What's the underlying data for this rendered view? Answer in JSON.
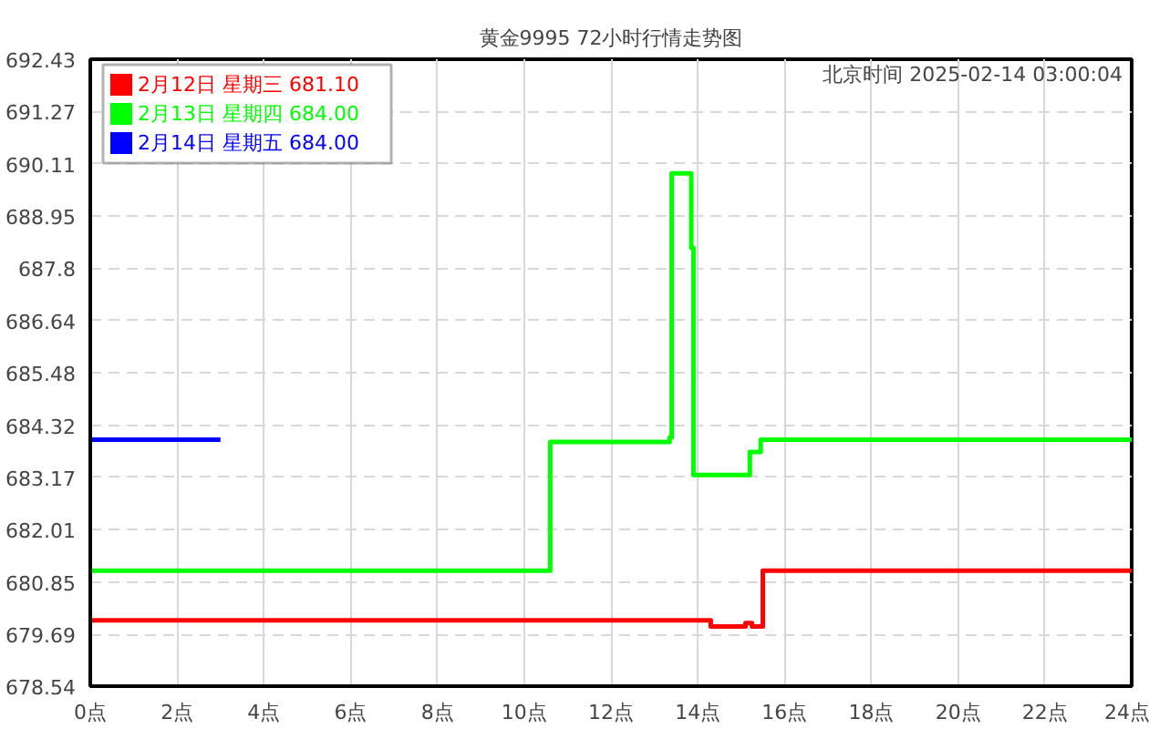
{
  "chart_data": {
    "type": "step",
    "title": "黄金9995 72小时行情走势图",
    "annotations": [
      "北京时间 2025-02-14 03:00:04"
    ],
    "xlim": [
      0,
      24
    ],
    "xticks": [
      {
        "value": 0,
        "label": "0点"
      },
      {
        "value": 2,
        "label": "2点"
      },
      {
        "value": 4,
        "label": "4点"
      },
      {
        "value": 6,
        "label": "6点"
      },
      {
        "value": 8,
        "label": "8点"
      },
      {
        "value": 10,
        "label": "10点"
      },
      {
        "value": 12,
        "label": "12点"
      },
      {
        "value": 14,
        "label": "14点"
      },
      {
        "value": 16,
        "label": "16点"
      },
      {
        "value": 18,
        "label": "18点"
      },
      {
        "value": 20,
        "label": "20点"
      },
      {
        "value": 22,
        "label": "22点"
      },
      {
        "value": 24,
        "label": "24点"
      }
    ],
    "ylim": [
      678.54,
      692.43
    ],
    "yticks": [
      678.54,
      679.69,
      680.85,
      682.01,
      683.17,
      684.32,
      685.48,
      686.64,
      687.8,
      688.95,
      690.11,
      691.27,
      692.43
    ],
    "grid": true,
    "legend": "top left",
    "marker": "none",
    "line_style": "solid",
    "series": [
      {
        "name": "2月12日 星期三 681.10",
        "color": "#ff0000",
        "x": [
          0,
          14.3,
          15.1,
          15.25,
          15.4,
          15.5,
          24
        ],
        "values": [
          680.0,
          679.86,
          679.94,
          679.86,
          679.86,
          681.1,
          681.1
        ]
      },
      {
        "name": "2月13日 星期四 684.00",
        "color": "#00ff00",
        "x": [
          0,
          10.6,
          13.35,
          13.4,
          13.85,
          13.9,
          15.2,
          15.45,
          24
        ],
        "values": [
          681.1,
          683.95,
          684.05,
          689.9,
          688.25,
          683.22,
          683.73,
          684.0,
          684.0
        ]
      },
      {
        "name": "2月14日 星期五 684.00",
        "color": "#0000ff",
        "x": [
          0,
          3.0
        ],
        "values": [
          684.0,
          684.0
        ]
      }
    ]
  }
}
